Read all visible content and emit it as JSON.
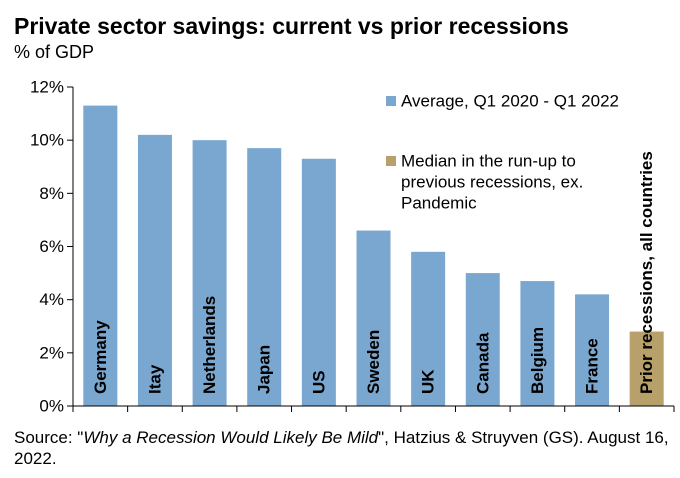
{
  "title": "Private sector savings: current vs prior recessions",
  "subtitle": "% of GDP",
  "source": {
    "prefix": "Source: \"",
    "italic": "Why a Recession Would Likely Be Mild",
    "suffix": "\", Hatzius & Struyven (GS). August 16, 2022."
  },
  "colors": {
    "average": "#7aa7cf",
    "median": "#b8a06a",
    "axis": "#000000"
  },
  "chart_data": {
    "type": "bar",
    "categories": [
      "Germany",
      "Itay",
      "Netherlands",
      "Japan",
      "US",
      "Sweden",
      "UK",
      "Canada",
      "Belgium",
      "France",
      "Prior recessions, all countries"
    ],
    "values": [
      11.3,
      10.2,
      10.0,
      9.7,
      9.3,
      6.6,
      5.8,
      5.0,
      4.7,
      4.2,
      2.8
    ],
    "series_index": [
      0,
      0,
      0,
      0,
      0,
      0,
      0,
      0,
      0,
      0,
      1
    ],
    "series": [
      {
        "name": "Average, Q1 2020 - Q1 2022",
        "color": "#7aa7cf"
      },
      {
        "name": "Median in the run-up to previous recessions, ex. Pandemic",
        "color": "#b8a06a"
      }
    ],
    "legend_lines": [
      [
        "Average, Q1 2020 - Q1 2022"
      ],
      [
        "Median in the run-up to",
        "previous recessions, ex.",
        "Pandemic"
      ]
    ],
    "ylim": [
      0,
      12
    ],
    "yticks": [
      0,
      2,
      4,
      6,
      8,
      10,
      12
    ],
    "ytick_labels": [
      "0%",
      "2%",
      "4%",
      "6%",
      "8%",
      "10%",
      "12%"
    ],
    "legend_position": "top-right",
    "grid": false
  }
}
